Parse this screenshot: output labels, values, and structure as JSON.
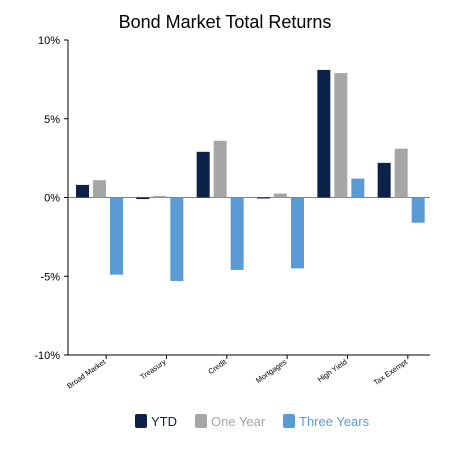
{
  "chart_data": {
    "type": "bar",
    "title": "Bond Market Total Returns",
    "xlabel": "",
    "ylabel": "",
    "categories": [
      "Broad Market",
      "Treasury",
      "Credit",
      "Mortgages",
      "High Yield",
      "Tax Exempt"
    ],
    "series": [
      {
        "name": "YTD",
        "color": "#0b2148",
        "values": [
          0.8,
          -0.1,
          2.9,
          -0.05,
          8.1,
          2.2
        ]
      },
      {
        "name": "One Year",
        "color": "#a6a6a6",
        "values": [
          1.1,
          0.1,
          3.6,
          0.25,
          7.9,
          3.1
        ]
      },
      {
        "name": "Three Years",
        "color": "#5b9bd5",
        "values": [
          -4.9,
          -5.3,
          -4.6,
          -4.5,
          1.2,
          -1.6
        ]
      }
    ],
    "ylim": [
      -10,
      10
    ],
    "yticks": [
      10,
      5,
      0,
      -5,
      -10
    ],
    "ytick_labels": [
      "10%",
      "5%",
      "0%",
      "-5%",
      "-10%"
    ],
    "grid": false,
    "legend_position": "bottom"
  }
}
